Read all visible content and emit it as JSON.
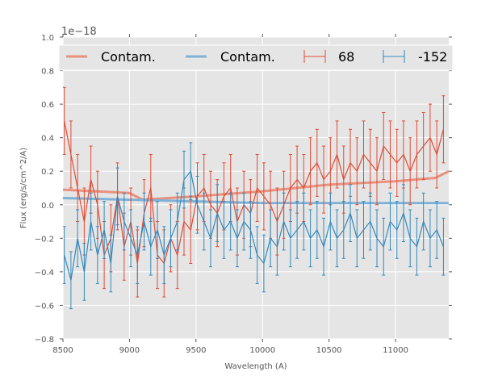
{
  "chart_data": {
    "type": "line",
    "title": "",
    "xlabel": "Wavelength (A)",
    "ylabel": "Flux (erg/s/cm^2/A)",
    "y_offset_label": "1e−18",
    "xlim": [
      8500,
      11400
    ],
    "ylim": [
      -0.8,
      1.0
    ],
    "xticks": [
      8500,
      9000,
      9500,
      10000,
      10500,
      11000
    ],
    "yticks": [
      -0.8,
      -0.6,
      -0.4,
      -0.2,
      0.0,
      0.2,
      0.4,
      0.6,
      0.8,
      1.0
    ],
    "ytick_labels": [
      "−0.8",
      "−0.6",
      "−0.4",
      "−0.2",
      "0.0",
      "0.2",
      "0.4",
      "0.6",
      "0.8",
      "1.0"
    ],
    "grid": true,
    "legend_placement": "top",
    "x": [
      8510,
      8560,
      8610,
      8660,
      8710,
      8760,
      8810,
      8860,
      8910,
      8960,
      9010,
      9060,
      9110,
      9160,
      9210,
      9260,
      9310,
      9360,
      9410,
      9460,
      9510,
      9560,
      9610,
      9660,
      9710,
      9760,
      9810,
      9860,
      9910,
      9960,
      10010,
      10060,
      10110,
      10160,
      10210,
      10260,
      10310,
      10360,
      10410,
      10460,
      10510,
      10560,
      10610,
      10660,
      10710,
      10760,
      10810,
      10860,
      10910,
      10960,
      11010,
      11060,
      11110,
      11160,
      11210,
      11260,
      11310,
      11360
    ],
    "series": [
      {
        "name": "68",
        "kind": "errorbar",
        "color": "#e24a33",
        "y": [
          0.5,
          0.3,
          0.1,
          -0.1,
          0.15,
          0.0,
          -0.3,
          -0.2,
          0.05,
          -0.25,
          -0.1,
          -0.35,
          -0.05,
          0.1,
          -0.3,
          -0.35,
          -0.2,
          -0.3,
          -0.1,
          -0.15,
          0.05,
          0.1,
          0.0,
          -0.05,
          0.05,
          0.1,
          -0.1,
          0.0,
          -0.05,
          0.1,
          0.05,
          0.0,
          -0.1,
          0.0,
          0.1,
          0.15,
          0.1,
          0.2,
          0.25,
          0.15,
          0.2,
          0.3,
          0.15,
          0.25,
          0.2,
          0.3,
          0.25,
          0.2,
          0.35,
          0.3,
          0.25,
          0.3,
          0.2,
          0.3,
          0.35,
          0.4,
          0.3,
          0.45
        ],
        "yerr": 0.2
      },
      {
        "name": "-152",
        "kind": "errorbar",
        "color": "#348abd",
        "y": [
          -0.3,
          -0.45,
          -0.2,
          -0.4,
          -0.1,
          -0.3,
          -0.15,
          -0.35,
          0.05,
          -0.1,
          -0.2,
          -0.3,
          -0.1,
          -0.25,
          -0.15,
          -0.3,
          -0.2,
          -0.1,
          0.15,
          0.2,
          0.0,
          -0.1,
          -0.2,
          -0.05,
          -0.15,
          -0.1,
          -0.2,
          -0.1,
          -0.15,
          -0.3,
          -0.35,
          -0.2,
          -0.25,
          -0.1,
          -0.2,
          -0.15,
          -0.1,
          -0.2,
          -0.15,
          -0.25,
          -0.1,
          -0.2,
          -0.15,
          -0.05,
          -0.2,
          -0.15,
          -0.1,
          -0.2,
          -0.25,
          -0.1,
          -0.15,
          -0.05,
          -0.2,
          -0.25,
          -0.1,
          -0.2,
          -0.15,
          -0.25
        ],
        "yerr": 0.17
      },
      {
        "name": "Contam.",
        "kind": "line",
        "color": "#e8917f",
        "x": [
          8500,
          9000,
          9100,
          9500,
          10000,
          10500,
          11000,
          11300,
          11400
        ],
        "y": [
          0.09,
          0.07,
          0.03,
          0.05,
          0.08,
          0.12,
          0.14,
          0.16,
          0.2
        ]
      },
      {
        "name": "Contam.",
        "kind": "line",
        "color": "#7fb1d6",
        "x": [
          8500,
          9000,
          9500,
          10000,
          11400
        ],
        "y": [
          0.04,
          0.03,
          0.02,
          0.01,
          0.01
        ]
      }
    ],
    "legend": [
      "Contam.",
      "Contam.",
      "68",
      "-152"
    ]
  }
}
